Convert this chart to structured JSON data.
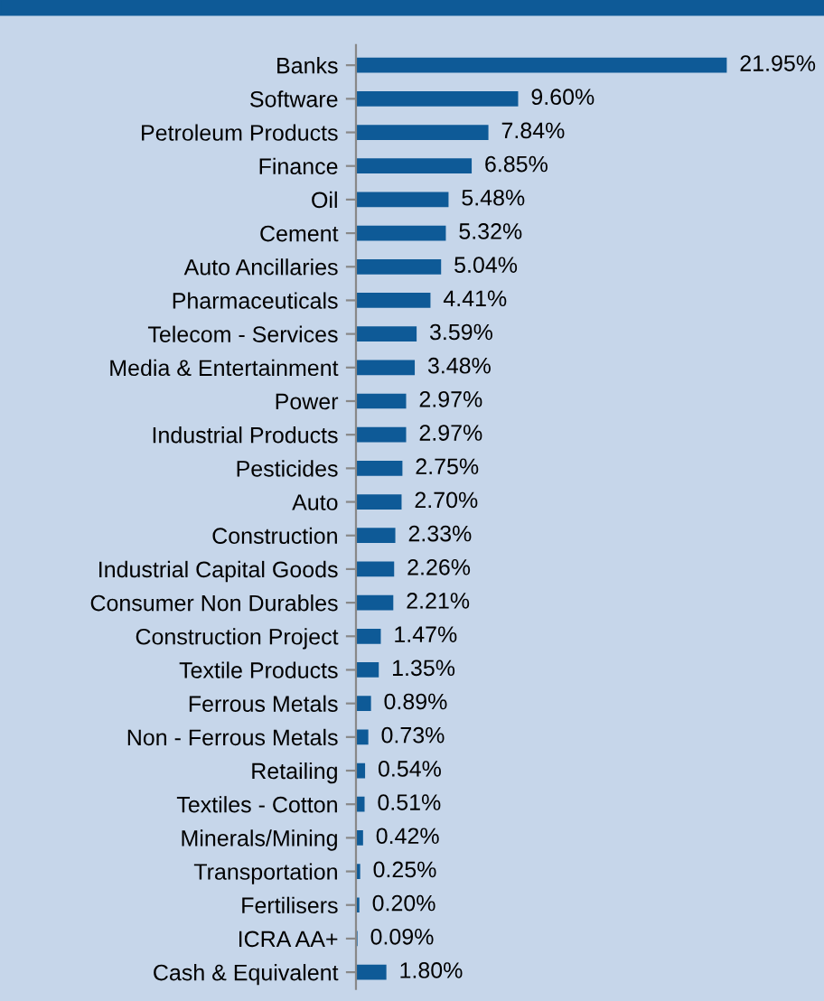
{
  "chart_data": {
    "type": "bar",
    "orientation": "horizontal",
    "categories": [
      "Banks",
      "Software",
      "Petroleum Products",
      "Finance",
      "Oil",
      "Cement",
      "Auto Ancillaries",
      "Pharmaceuticals",
      "Telecom - Services",
      "Media & Entertainment",
      "Power",
      "Industrial Products",
      "Pesticides",
      "Auto",
      "Construction",
      "Industrial Capital Goods",
      "Consumer Non Durables",
      "Construction Project",
      "Textile Products",
      "Ferrous Metals",
      "Non - Ferrous Metals",
      "Retailing",
      "Textiles - Cotton",
      "Minerals/Mining",
      "Transportation",
      "Fertilisers",
      "ICRA AA+",
      "Cash & Equivalent"
    ],
    "values": [
      21.95,
      9.6,
      7.84,
      6.85,
      5.48,
      5.32,
      5.04,
      4.41,
      3.59,
      3.48,
      2.97,
      2.97,
      2.75,
      2.7,
      2.33,
      2.26,
      2.21,
      1.47,
      1.35,
      0.89,
      0.73,
      0.54,
      0.51,
      0.42,
      0.25,
      0.2,
      0.09,
      1.8
    ],
    "value_labels": [
      "21.95%",
      "9.60%",
      "7.84%",
      "6.85%",
      "5.48%",
      "5.32%",
      "5.04%",
      "4.41%",
      "3.59%",
      "3.48%",
      "2.97%",
      "2.97%",
      "2.75%",
      "2.70%",
      "2.33%",
      "2.26%",
      "2.21%",
      "1.47%",
      "1.35%",
      "0.89%",
      "0.73%",
      "0.54%",
      "0.51%",
      "0.42%",
      "0.25%",
      "0.20%",
      "0.09%",
      "1.80%"
    ],
    "color": "#0e5a97",
    "grid": false,
    "legend": false
  }
}
